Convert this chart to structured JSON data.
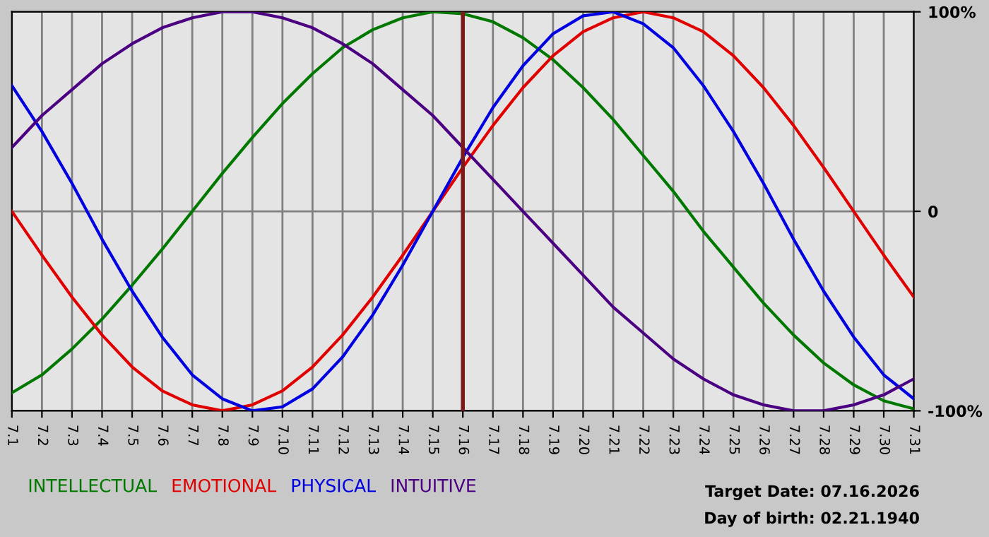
{
  "chart_data": {
    "type": "line",
    "categories": [
      "7.1",
      "7.2",
      "7.3",
      "7.4",
      "7.5",
      "7.6",
      "7.7",
      "7.8",
      "7.9",
      "7.10",
      "7.11",
      "7.12",
      "7.13",
      "7.14",
      "7.15",
      "7.16",
      "7.17",
      "7.18",
      "7.19",
      "7.20",
      "7.21",
      "7.22",
      "7.23",
      "7.24",
      "7.25",
      "7.26",
      "7.27",
      "7.28",
      "7.29",
      "7.30",
      "7.31"
    ],
    "series": [
      {
        "name": "INTELLECTUAL",
        "color": "#007800",
        "values": [
          -91,
          -82,
          -69,
          -54,
          -37,
          -19,
          0,
          19,
          37,
          54,
          69,
          82,
          91,
          97,
          100,
          99,
          95,
          87,
          76,
          62,
          46,
          28,
          10,
          -10,
          -28,
          -46,
          -62,
          -76,
          -87,
          -95,
          -99
        ]
      },
      {
        "name": "EMOTIONAL",
        "color": "#e00000",
        "values": [
          0,
          -22,
          -43,
          -62,
          -78,
          -90,
          -97,
          -100,
          -97,
          -90,
          -78,
          -62,
          -43,
          -22,
          0,
          22,
          43,
          62,
          78,
          90,
          97,
          100,
          97,
          90,
          78,
          62,
          43,
          22,
          0,
          -22,
          -43
        ]
      },
      {
        "name": "PHYSICAL",
        "color": "#0000e0",
        "values": [
          63,
          40,
          14,
          -14,
          -40,
          -63,
          -82,
          -94,
          -100,
          -98,
          -89,
          -73,
          -52,
          -27,
          0,
          27,
          52,
          73,
          89,
          98,
          100,
          94,
          82,
          63,
          40,
          14,
          -14,
          -40,
          -63,
          -82,
          -94
        ]
      },
      {
        "name": "INTUITIVE",
        "color": "#4b0082",
        "values": [
          32,
          48,
          61,
          74,
          84,
          92,
          97,
          100,
          100,
          97,
          92,
          84,
          74,
          61,
          48,
          32,
          16,
          0,
          -16,
          -32,
          -48,
          -61,
          -74,
          -84,
          -92,
          -97,
          -100,
          -100,
          -97,
          -92,
          -84
        ]
      }
    ],
    "ylim": [
      -100,
      100
    ],
    "yticks": [
      {
        "value": 100,
        "label": "100%"
      },
      0,
      {
        "value": -100,
        "label": "-100%"
      }
    ],
    "grid": true,
    "legend": "bottom",
    "marker": "none",
    "line_style": "solid",
    "ref_lines": [
      {
        "axis": "x",
        "value": "7.16",
        "color": "#7a1a1a"
      }
    ],
    "annotations": [
      "Target Date: 07.16.2026",
      "Day of birth: 02.21.1940"
    ]
  }
}
